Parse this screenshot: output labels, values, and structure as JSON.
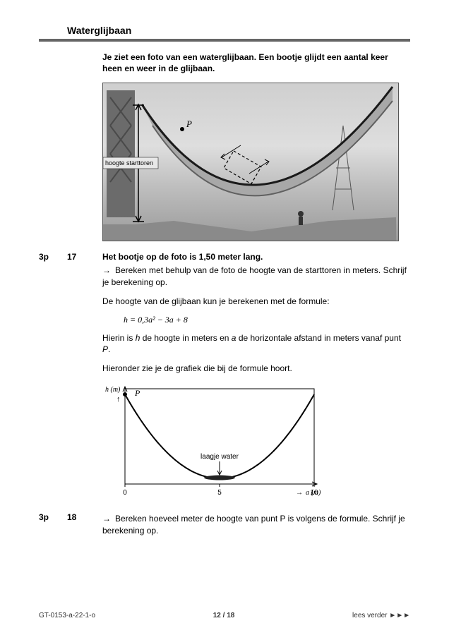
{
  "section": {
    "title": "Waterglijbaan"
  },
  "intro": "Je ziet een foto van een waterglijbaan. Een bootje glijdt een aantal keer heen en weer in de glijbaan.",
  "photo": {
    "label_hoogte": "hoogte starttoren",
    "point_label": "P",
    "curve_color": "#1a1a1a",
    "sky_color": "#d4d4d4",
    "structure_color": "#777777"
  },
  "q17": {
    "points": "3p",
    "num": "17",
    "lead": "Het bootje op de foto is 1,50 meter lang.",
    "task": "Bereken met behulp van de foto de hoogte van de starttoren in meters. Schrijf je berekening op."
  },
  "para_formula_intro": "De hoogte van de glijbaan kun je berekenen met de formule:",
  "formula_text": "h = 0,3a² − 3a + 8",
  "para_formula_explain": "Hierin is h de hoogte in meters en a de horizontale afstand in meters vanaf punt P.",
  "para_graph_intro": "Hieronder zie je de grafiek die bij de formule hoort.",
  "graph": {
    "type": "line",
    "y_label": "h (m)",
    "x_label": "a (m)",
    "point_label": "P",
    "water_label": "laagje water",
    "x_ticks": [
      "0",
      "5",
      "10"
    ],
    "xlim": [
      0,
      10
    ],
    "ylim": [
      0,
      8.5
    ],
    "curve_coef": {
      "a": 0.3,
      "b": -3,
      "c": 8
    },
    "axis_color": "#000000",
    "curve_color": "#000000",
    "curve_width": 2,
    "background_color": "#ffffff",
    "fontsize": 10
  },
  "q18": {
    "points": "3p",
    "num": "18",
    "task": "Bereken hoeveel meter de hoogte van punt P is volgens de formule. Schrijf je berekening op."
  },
  "footer": {
    "left": "GT-0153-a-22-1-o",
    "center": "12 / 18",
    "right": "lees verder ►►►"
  }
}
